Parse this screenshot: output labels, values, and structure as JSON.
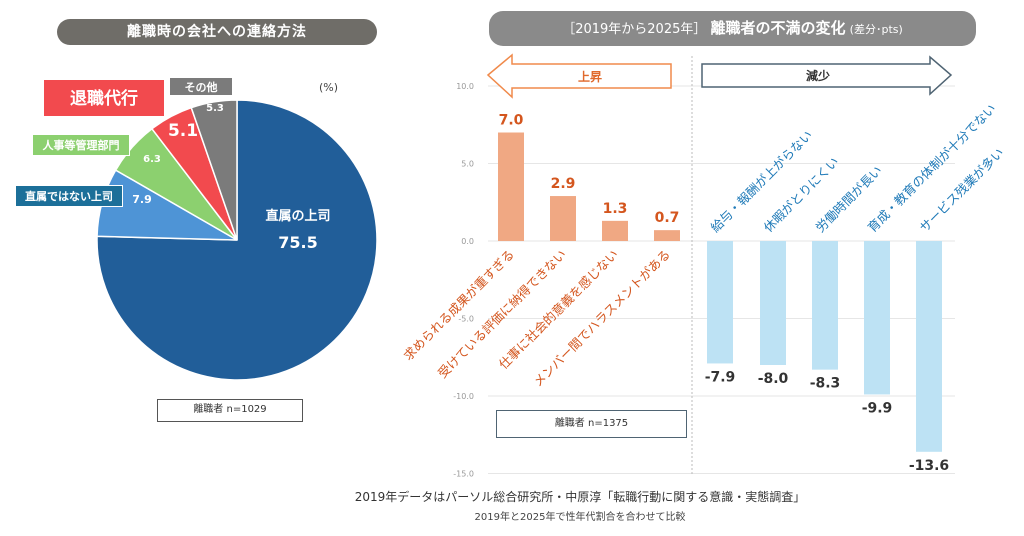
{
  "chart_data": [
    {
      "type": "pie",
      "title": "離職時の会社への連絡方法",
      "unit_label": "(%)",
      "slices": [
        {
          "label": "直属の上司",
          "value": 75.5,
          "color": "#215e99"
        },
        {
          "label": "直属ではない上司",
          "value": 7.9,
          "color": "#4e94d6"
        },
        {
          "label": "人事等管理部門",
          "value": 6.3,
          "color": "#8cd06f"
        },
        {
          "label": "退職代行",
          "value": 5.1,
          "color": "#f24a4e"
        },
        {
          "label": "その他",
          "value": 5.3,
          "color": "#7b7b7b"
        }
      ],
      "tag_colors": {
        "直属ではない上司": "#1c6f99",
        "人事等管理部門": "#8cd06f",
        "退職代行": "#f24a4e",
        "その他": "#7b7b7b"
      },
      "sample": "離職者  n=1029"
    },
    {
      "type": "bar",
      "title_bracket": "［2019年から2025年］",
      "title_main": "離職者の不満の変化",
      "title_unit": "(差分･pts)",
      "ylim": [
        -15,
        10
      ],
      "yticks": [
        10,
        5,
        0,
        -5,
        -10,
        -15
      ],
      "ytick_labels": [
        "10.0",
        "5.0",
        "0.0",
        "-5.0",
        "-10.0",
        "-15.0"
      ],
      "grid": true,
      "increase_label": "上昇",
      "decrease_label": "減少",
      "categories": [
        "求められる成果が重すぎる",
        "受けている評価に納得できない",
        "仕事に社会的意義を感じない",
        "メンバー間でハラスメントがある",
        "給与・報酬が上がらない",
        "休暇がとりにくい",
        "労働時間が長い",
        "育成・教育の体制が十分でない",
        "サービス残業が多い"
      ],
      "values": [
        7.0,
        2.9,
        1.3,
        0.7,
        -7.9,
        -8.0,
        -8.3,
        -9.9,
        -13.6
      ],
      "value_labels": [
        "7.0",
        "2.9",
        "1.3",
        "0.7",
        "-7.9",
        "-8.0",
        "-8.3",
        "-9.9",
        "-13.6"
      ],
      "colors": {
        "increase": "#f0a883",
        "increase_text": "#d4561e",
        "decrease": "#bde2f4",
        "decrease_text": "#1f7ab8",
        "value_text_negative": "#333333"
      },
      "sample": "離職者  n=1375"
    }
  ],
  "footnote": {
    "line1": "2019年データはパーソル総合研究所・中原淳「転職行動に関する意識・実態調査」",
    "line2": "2019年と2025年で性年代割合を合わせて比較"
  }
}
